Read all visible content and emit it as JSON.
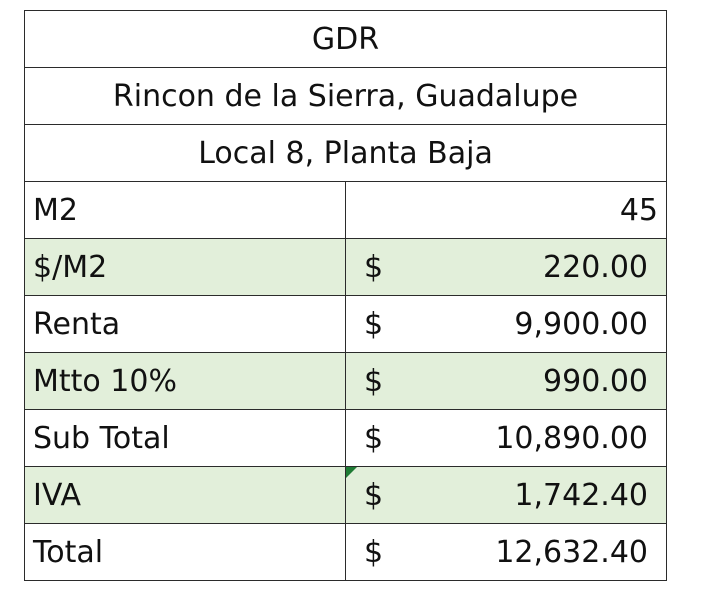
{
  "header": {
    "title": "GDR",
    "location": "Rincon de la Sierra, Guadalupe",
    "unit": "Local 8, Planta Baja"
  },
  "rows": [
    {
      "label": "M2",
      "currency": "",
      "value": "45",
      "shaded": false
    },
    {
      "label": "$/M2",
      "currency": "$",
      "value": "220.00",
      "shaded": true
    },
    {
      "label": "Renta",
      "currency": "$",
      "value": "9,900.00",
      "shaded": false
    },
    {
      "label": "Mtto 10%",
      "currency": "$",
      "value": "990.00",
      "shaded": true
    },
    {
      "label": "Sub Total",
      "currency": "$",
      "value": "10,890.00",
      "shaded": false
    },
    {
      "label": "IVA",
      "currency": "$",
      "value": "1,742.40",
      "shaded": true
    },
    {
      "label": "Total",
      "currency": "$",
      "value": "12,632.40",
      "shaded": false
    }
  ],
  "colors": {
    "shade": "#e2efda",
    "border": "#2b2b2b",
    "comment_marker": "#1e7b34"
  }
}
